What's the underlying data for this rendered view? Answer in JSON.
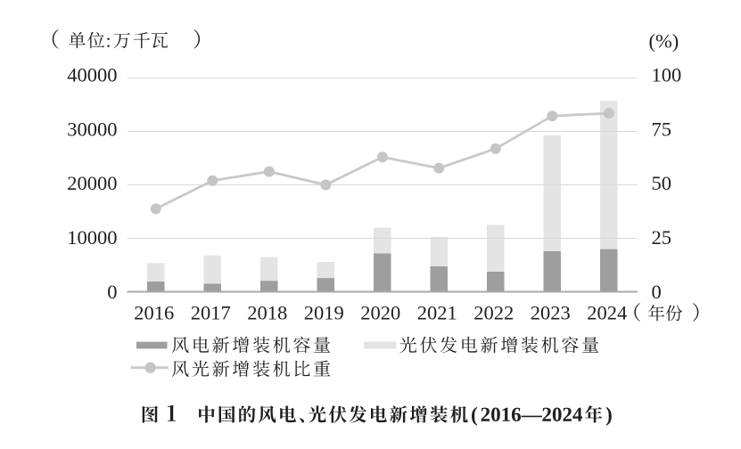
{
  "figure": {
    "left_axis_unit_label": "（单位:万千瓦）",
    "right_axis_unit_label": "(%)",
    "x_axis_label": "（年份）",
    "caption": "图 1　中国的风电、光伏发电新增装机（2016—2024 年）"
  },
  "legend": {
    "items": [
      {
        "label": "风电新增装机容量",
        "swatch": "bar",
        "color": "#9e9e9e"
      },
      {
        "label": "光伏发电新增装机容量",
        "swatch": "bar",
        "color": "#e4e4e4"
      },
      {
        "label": "风光新增装机比重",
        "swatch": "line-marker",
        "color": "#c9c9c9"
      }
    ]
  },
  "chart_data": {
    "type": "combo_stacked_bar_line",
    "title": "图 1　中国的风电、光伏发电新增装机（2016—2024 年）",
    "categories": [
      "2016",
      "2017",
      "2018",
      "2019",
      "2020",
      "2021",
      "2022",
      "2023",
      "2024"
    ],
    "series": [
      {
        "name": "风电新增装机容量",
        "type": "bar",
        "stack": "capacity",
        "axis": "left",
        "values": [
          1930,
          1503,
          2059,
          2574,
          7167,
          4757,
          3763,
          7590,
          7982
        ]
      },
      {
        "name": "光伏发电新增装机容量",
        "type": "bar",
        "stack": "capacity",
        "axis": "left",
        "values": [
          3454,
          5306,
          4426,
          3011,
          4820,
          5488,
          8741,
          21688,
          27757
        ]
      },
      {
        "name": "风光新增装机比重",
        "type": "line",
        "axis": "right",
        "values": [
          38.8,
          52.0,
          56.2,
          50.0,
          63.0,
          57.8,
          66.9,
          82.2,
          83.5
        ]
      }
    ],
    "left_axis": {
      "label": "（单位:万千瓦）",
      "ticks": [
        "0",
        "10000",
        "20000",
        "30000",
        "40000"
      ],
      "range": [
        0,
        40000
      ]
    },
    "right_axis": {
      "label": "(%)",
      "ticks": [
        "0",
        "25",
        "50",
        "75",
        "100"
      ],
      "range": [
        0,
        100
      ]
    },
    "x_axis": {
      "label": "（年份）"
    },
    "grid": true,
    "legend_position": "bottom"
  },
  "colors": {
    "wind_bar": "#9e9e9e",
    "solar_bar": "#e4e4e4",
    "share_line": "#c9c9c9",
    "share_marker": "#c5c5c5",
    "gridline": "#d8d8d8",
    "axis_line": "#a9a9a9",
    "text": "#1f1f1f",
    "background": "#ffffff"
  }
}
